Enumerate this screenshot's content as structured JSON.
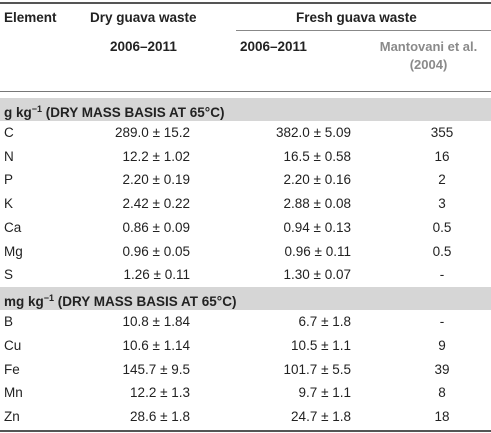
{
  "headers": {
    "element": "Element",
    "dry": "Dry guava waste",
    "fresh": "Fresh guava waste",
    "dry_years": "2006–2011",
    "fresh_years": "2006–2011",
    "mant_line1": "Mantovani et al.",
    "mant_line2": "(2004)"
  },
  "section1": {
    "label_pre": "g kg",
    "label_sup": "−1",
    "label_post": " (DRY MASS BASIS AT 65°C)"
  },
  "section2": {
    "label_pre": "mg kg",
    "label_sup": "−1",
    "label_post": " (DRY MASS BASIS AT 65°C)"
  },
  "rows1": [
    {
      "el": "C",
      "dry": "289.0 ± 15.2",
      "fresh": "382.0 ± 5.09",
      "mant": "355"
    },
    {
      "el": "N",
      "dry": "12.2 ± 1.02",
      "fresh": "16.5 ± 0.58",
      "mant": "16"
    },
    {
      "el": "P",
      "dry": "2.20 ± 0.19",
      "fresh": "2.20 ± 0.16",
      "mant": "2"
    },
    {
      "el": "K",
      "dry": "2.42 ± 0.22",
      "fresh": "2.88 ± 0.08",
      "mant": "3"
    },
    {
      "el": "Ca",
      "dry": "0.86 ± 0.09",
      "fresh": "0.94 ± 0.13",
      "mant": "0.5"
    },
    {
      "el": "Mg",
      "dry": "0.96 ± 0.05",
      "fresh": "0.96 ± 0.11",
      "mant": "0.5"
    },
    {
      "el": "S",
      "dry": "1.26 ± 0.11",
      "fresh": "1.30 ± 0.07",
      "mant": "-"
    }
  ],
  "rows2": [
    {
      "el": "B",
      "dry": "10.8 ± 1.84",
      "fresh": "6.7 ± 1.8",
      "mant": "-"
    },
    {
      "el": "Cu",
      "dry": "10.6 ± 1.14",
      "fresh": "10.5 ± 1.1",
      "mant": "9"
    },
    {
      "el": "Fe",
      "dry": "145.7 ± 9.5",
      "fresh": "101.7 ± 5.5",
      "mant": "39"
    },
    {
      "el": "Mn",
      "dry": "12.2 ± 1.3",
      "fresh": "9.7 ± 1.1",
      "mant": "8"
    },
    {
      "el": "Zn",
      "dry": "28.6 ± 1.8",
      "fresh": "24.7 ± 1.8",
      "mant": "18"
    }
  ]
}
